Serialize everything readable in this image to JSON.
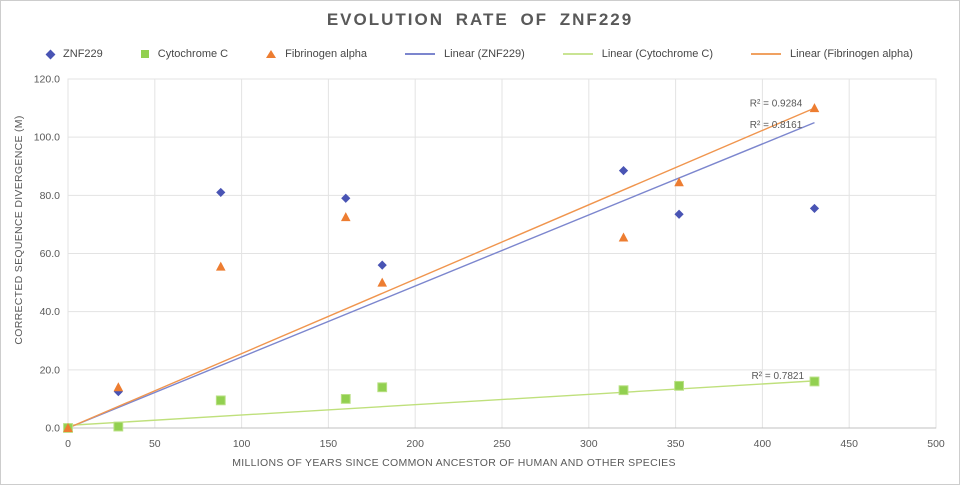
{
  "title": "EVOLUTION RATE OF ZNF229",
  "legend": {
    "items": [
      {
        "label": "ZNF229",
        "marker": "diamond",
        "color": "#4954b4"
      },
      {
        "label": "Cytochrome C",
        "marker": "square",
        "color": "#92d050"
      },
      {
        "label": "Fibrinogen alpha",
        "marker": "triangle",
        "color": "#ed7d31"
      },
      {
        "label": "Linear (ZNF229)",
        "marker": "line",
        "color": "#7c86ce"
      },
      {
        "label": "Linear (Cytochrome C)",
        "marker": "line",
        "color": "#c9e493"
      },
      {
        "label": "Linear (Fibrinogen alpha)",
        "marker": "line",
        "color": "#f0a161"
      }
    ]
  },
  "chart_data": {
    "type": "scatter",
    "title": "EVOLUTION RATE OF ZNF229",
    "xlabel": "MILLIONS OF YEARS SINCE COMMON ANCESTOR OF HUMAN AND OTHER SPECIES",
    "ylabel": "CORRECTED SEQUENCE DIVERGENCE (M)",
    "xlim": [
      0,
      500
    ],
    "ylim": [
      0,
      120
    ],
    "xticks": [
      0,
      50,
      100,
      150,
      200,
      250,
      300,
      350,
      400,
      450,
      500
    ],
    "yticks": [
      0,
      20,
      40,
      60,
      80,
      100,
      120
    ],
    "ytick_labels": [
      "0.0",
      "20.0",
      "40.0",
      "60.0",
      "80.0",
      "100.0",
      "120.0"
    ],
    "grid": true,
    "legend_position": "top",
    "grid_color": "#e3e3e3",
    "axis_color": "#c0c0c0",
    "text_color": "#595959",
    "x": [
      0,
      29,
      88,
      160,
      181,
      320,
      352,
      430
    ],
    "series": [
      {
        "name": "ZNF229",
        "marker": "diamond",
        "color": "#4954b4",
        "values": [
          0,
          12.5,
          81,
          79,
          56,
          88.5,
          73.5,
          75.5
        ]
      },
      {
        "name": "Cytochrome C",
        "marker": "square",
        "color": "#92d050",
        "values": [
          0,
          0.5,
          9.5,
          10,
          14,
          13,
          14.5,
          16
        ]
      },
      {
        "name": "Fibrinogen alpha",
        "marker": "triangle",
        "color": "#ed7d31",
        "values": [
          0,
          14,
          55.5,
          72.5,
          50,
          65.5,
          84.5,
          110
        ]
      }
    ],
    "trendlines": [
      {
        "name": "Linear (ZNF229)",
        "color": "#7c86ce",
        "start": {
          "x": 0,
          "y": 0
        },
        "end": {
          "x": 430,
          "y": 105
        },
        "r2": 0.8161,
        "r2_label": "R² = 0.8161",
        "label_pos": {
          "x": 423,
          "y": 103.2
        }
      },
      {
        "name": "Linear (Cytochrome C)",
        "color": "#bfe07c",
        "start": {
          "x": 0,
          "y": 0.9
        },
        "end": {
          "x": 430,
          "y": 16.2
        },
        "r2": 0.7821,
        "r2_label": "R² = 0.7821",
        "label_pos": {
          "x": 424,
          "y": 16.8
        }
      },
      {
        "name": "Linear (Fibrinogen alpha)",
        "color": "#f0954e",
        "start": {
          "x": 0,
          "y": 0
        },
        "end": {
          "x": 430,
          "y": 110
        },
        "r2": 0.9284,
        "r2_label": "R² = 0.9284",
        "label_pos": {
          "x": 423,
          "y": 110.5
        }
      }
    ]
  }
}
